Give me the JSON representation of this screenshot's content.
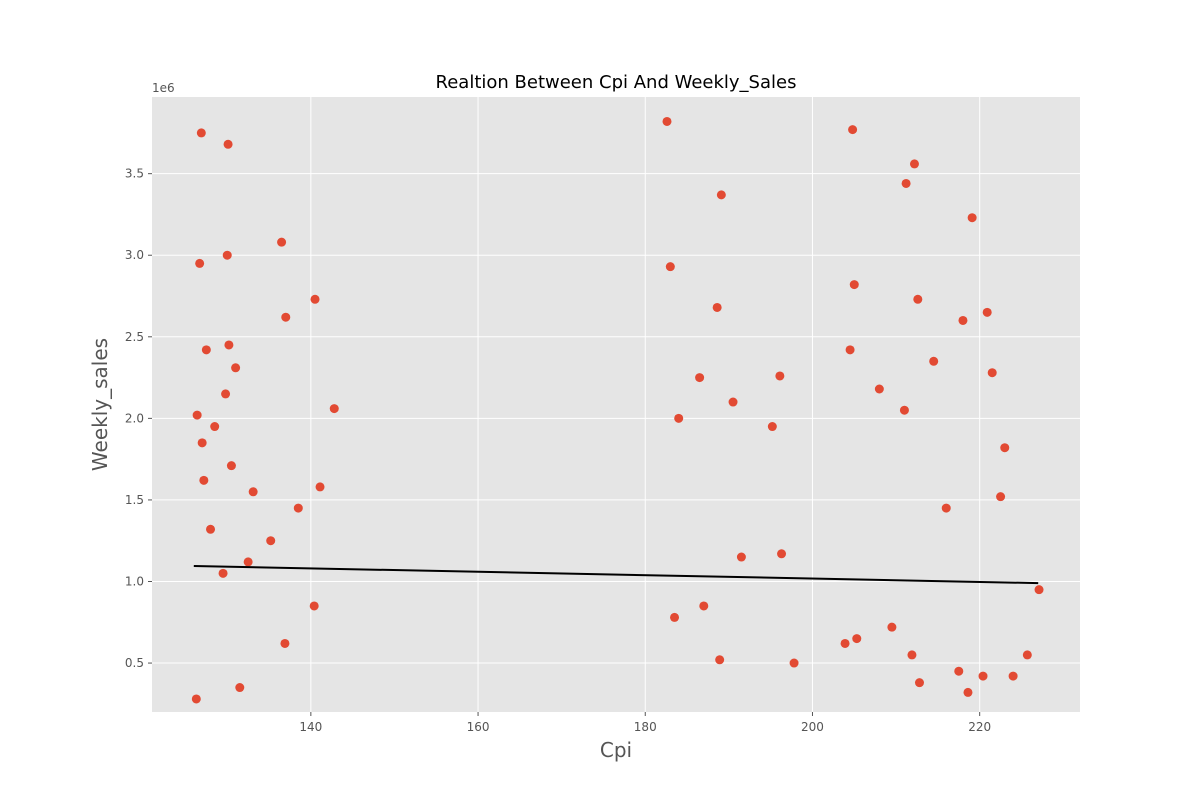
{
  "chart_data": {
    "type": "scatter",
    "title": "Realtion Between Cpi And Weekly_Sales",
    "xlabel": "Cpi",
    "ylabel": "Weekly_sales",
    "y_offset_label": "1e6",
    "xlim": [
      121,
      232
    ],
    "ylim": [
      0.2,
      3.97
    ],
    "x_ticks": [
      140,
      160,
      180,
      200,
      220
    ],
    "y_ticks": [
      0.5,
      1.0,
      1.5,
      2.0,
      2.5,
      3.0,
      3.5
    ],
    "y_tick_labels": [
      "0.5",
      "1.0",
      "1.5",
      "2.0",
      "2.5",
      "3.0",
      "3.5"
    ],
    "grid": true,
    "point_color": "#E24A33",
    "line_color": "#000000",
    "background": "#E5E5E5",
    "series": [
      {
        "x": [
          126.9,
          130.1,
          182.6,
          204.8,
          212.2,
          211.2,
          219.1,
          189.1,
          136.5,
          130.0,
          126.7,
          142.8,
          183.0,
          205.0,
          212.6,
          220.9,
          188.6,
          127.5,
          130.2,
          137.0,
          140.5,
          126.4,
          129.8,
          131.0,
          127.0,
          128.5,
          127.2,
          130.5,
          133.1,
          128.0,
          135.2,
          138.5,
          141.1,
          132.5,
          129.5,
          184.0,
          186.5,
          190.5,
          195.2,
          196.1,
          204.5,
          208.0,
          211.0,
          214.5,
          218.0,
          221.5,
          223.0,
          183.5,
          187.0,
          191.5,
          209.5,
          216.0,
          222.5,
          196.3,
          188.9,
          205.3,
          211.9,
          217.5,
          224.0,
          126.3,
          131.5,
          136.9,
          140.4,
          197.8,
          203.9,
          212.8,
          218.6,
          220.4,
          225.7,
          227.1
        ],
        "y": [
          3.75,
          3.68,
          3.82,
          3.77,
          3.56,
          3.44,
          3.23,
          3.37,
          3.08,
          3.0,
          2.95,
          2.06,
          2.93,
          2.82,
          2.73,
          2.65,
          2.68,
          2.42,
          2.45,
          2.62,
          2.73,
          2.02,
          2.15,
          2.31,
          1.85,
          1.95,
          1.62,
          1.71,
          1.55,
          1.32,
          1.25,
          1.45,
          1.58,
          1.12,
          1.05,
          2.0,
          2.25,
          2.1,
          1.95,
          2.26,
          2.42,
          2.18,
          2.05,
          2.35,
          2.6,
          2.28,
          1.82,
          0.78,
          0.85,
          1.15,
          0.72,
          1.45,
          1.52,
          1.17,
          0.52,
          0.65,
          0.55,
          0.45,
          0.42,
          0.28,
          0.35,
          0.62,
          0.85,
          0.5,
          0.62,
          0.38,
          0.32,
          0.42,
          0.55,
          0.95
        ]
      }
    ],
    "trend_line": {
      "x": [
        126,
        227
      ],
      "y": [
        1.095,
        0.99
      ]
    }
  }
}
